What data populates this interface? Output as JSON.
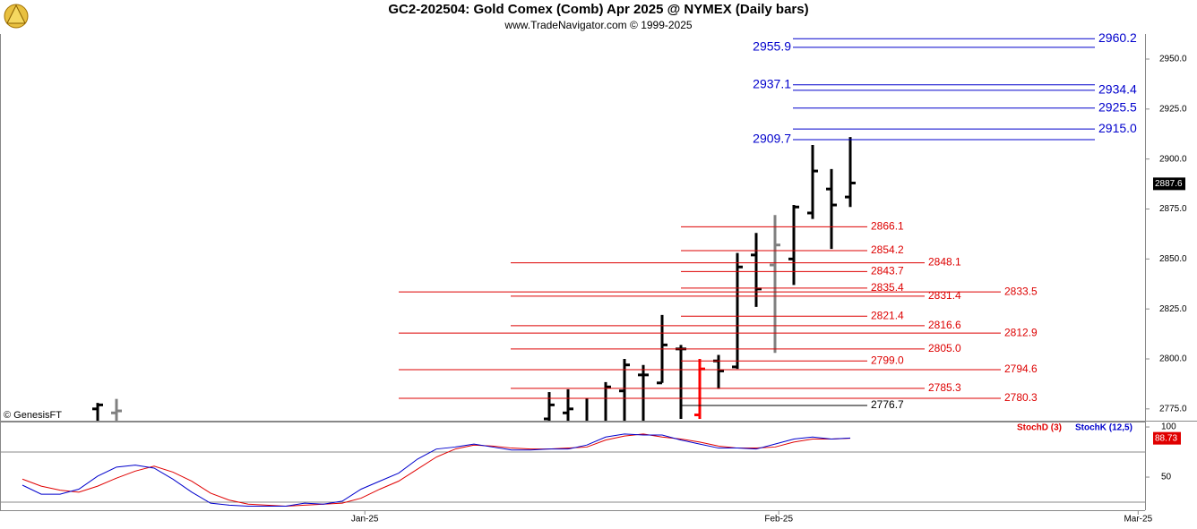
{
  "chart_data": [
    {
      "type": "ohlc",
      "title": "GC2-202504:  Gold Comex (Comb) Apr 2025 @ NYMEX  (Daily bars)",
      "subtitle": "www.TradeNavigator.com © 1999-2025",
      "source": "© GenesisFT",
      "x_labels": [
        "Jan-25",
        "Feb-25",
        "Mar-25"
      ],
      "open": [
        null,
        null,
        null,
        null,
        2775,
        2773,
        null,
        null,
        null,
        null,
        null,
        null,
        null,
        null,
        null,
        null,
        null,
        null,
        null,
        null,
        null,
        null,
        null,
        null,
        null,
        null,
        null,
        null,
        2770,
        2773,
        2768,
        2768,
        2784,
        2792,
        2788,
        2805,
        2772,
        2799,
        2796,
        2852,
        2847,
        2850,
        2873,
        2885,
        2881
      ],
      "high": [
        null,
        null,
        null,
        null,
        2778,
        2780,
        null,
        null,
        null,
        null,
        null,
        null,
        null,
        null,
        null,
        null,
        null,
        null,
        null,
        null,
        null,
        null,
        null,
        null,
        null,
        null,
        null,
        null,
        2783.4,
        2784.8,
        2780.3,
        2788.4,
        2800,
        2797,
        2822,
        2807,
        2800,
        2802,
        2853,
        2863,
        2872,
        2877,
        2907,
        2895,
        2911
      ],
      "low": [
        null,
        null,
        null,
        null,
        2765,
        2765,
        null,
        null,
        null,
        null,
        null,
        null,
        null,
        null,
        null,
        null,
        null,
        null,
        null,
        null,
        null,
        null,
        null,
        null,
        null,
        null,
        null,
        null,
        2765,
        2765,
        2765,
        2765,
        2765,
        2765,
        2788,
        2770,
        2770,
        2785,
        2795,
        2826,
        2803,
        2837,
        2870,
        2855,
        2876
      ],
      "close": [
        null,
        null,
        null,
        null,
        2777,
        2774,
        null,
        null,
        null,
        null,
        null,
        null,
        null,
        null,
        null,
        null,
        null,
        null,
        null,
        null,
        null,
        null,
        null,
        null,
        null,
        null,
        null,
        null,
        2777,
        2775,
        2768,
        2786,
        2797,
        2792,
        2807,
        2805,
        2795,
        2794,
        2846,
        2835,
        2857,
        2876,
        2894,
        2877,
        2888
      ],
      "colors": [
        null,
        null,
        null,
        null,
        "#000000",
        "#808080",
        null,
        null,
        null,
        null,
        null,
        null,
        null,
        null,
        null,
        null,
        null,
        null,
        null,
        null,
        null,
        null,
        null,
        null,
        null,
        null,
        null,
        null,
        "#000000",
        "#000000",
        "#000000",
        "#000000",
        "#000000",
        "#000000",
        "#000000",
        "#000000",
        "#ff0000",
        "#000000",
        "#000000",
        "#000000",
        "#808080",
        "#000000",
        "#000000",
        "#000000",
        "#000000"
      ],
      "ylim": [
        2769.1,
        2969.7
      ],
      "yticks": [
        {
          "value": 2775,
          "label": "2775.0"
        },
        {
          "value": 2800,
          "label": "2800.0"
        },
        {
          "value": 2825,
          "label": "2825.0"
        },
        {
          "value": 2850,
          "label": "2850.0"
        },
        {
          "value": 2875,
          "label": "2875.0"
        },
        {
          "value": 2900,
          "label": "2900.0"
        },
        {
          "value": 2925,
          "label": "2925.0"
        },
        {
          "value": 2950,
          "label": "2950.0"
        }
      ],
      "last_price": 2887.6,
      "levels": [
        {
          "value": 2960.2,
          "color": "#0000cc"
        },
        {
          "value": 2955.9,
          "color": "#0000cc"
        },
        {
          "value": 2937.1,
          "color": "#0000cc"
        },
        {
          "value": 2934.4,
          "color": "#0000cc"
        },
        {
          "value": 2925.5,
          "color": "#0000cc"
        },
        {
          "value": 2915,
          "label": "2915.0",
          "color": "#0000cc"
        },
        {
          "value": 2909.7,
          "color": "#0000cc"
        },
        {
          "value": 2866.1,
          "color": "#dd0000"
        },
        {
          "value": 2854.2,
          "color": "#dd0000"
        },
        {
          "value": 2848.1,
          "color": "#dd0000"
        },
        {
          "value": 2843.7,
          "color": "#dd0000"
        },
        {
          "value": 2835.4,
          "color": "#dd0000"
        },
        {
          "value": 2833.5,
          "color": "#dd0000"
        },
        {
          "value": 2831.4,
          "color": "#dd0000"
        },
        {
          "value": 2821.4,
          "color": "#dd0000"
        },
        {
          "value": 2816.6,
          "color": "#dd0000"
        },
        {
          "value": 2812.9,
          "color": "#dd0000"
        },
        {
          "value": 2805,
          "label": "2805.0",
          "color": "#dd0000"
        },
        {
          "value": 2799,
          "label": "2799.0",
          "color": "#dd0000"
        },
        {
          "value": 2794.6,
          "color": "#dd0000"
        },
        {
          "value": 2785.3,
          "color": "#dd0000"
        },
        {
          "value": 2780.3,
          "color": "#dd0000"
        },
        {
          "value": 2776.7,
          "color": "#000000"
        }
      ]
    },
    {
      "type": "line",
      "series": [
        {
          "name": "StochD (3)",
          "color": "#e00000",
          "values": [
            48,
            41,
            37,
            35,
            41,
            49,
            56,
            61,
            55,
            46,
            34,
            27,
            23,
            22,
            21,
            22,
            23,
            24,
            29,
            38,
            46,
            58,
            70,
            78,
            82,
            81,
            79,
            78,
            78,
            79,
            80,
            87,
            91,
            93,
            90,
            88,
            85,
            81,
            79,
            79,
            80,
            85,
            88,
            88,
            88.73
          ]
        },
        {
          "name": "StochK (12,5)",
          "color": "#0000cc",
          "values": [
            42,
            33,
            33,
            38,
            51,
            60,
            62,
            59,
            48,
            35,
            24,
            22,
            21,
            21,
            21,
            24,
            23,
            26,
            38,
            46,
            54,
            68,
            78,
            80,
            83,
            80,
            77,
            77,
            78,
            78,
            82,
            90,
            93,
            92,
            92,
            87,
            83,
            79,
            79,
            78,
            83,
            88,
            90,
            88,
            89
          ]
        }
      ],
      "ylim": [
        17,
        104.5
      ],
      "yticks": [
        100,
        50
      ],
      "bands": [
        75,
        25
      ],
      "last_value": 88.73
    }
  ]
}
